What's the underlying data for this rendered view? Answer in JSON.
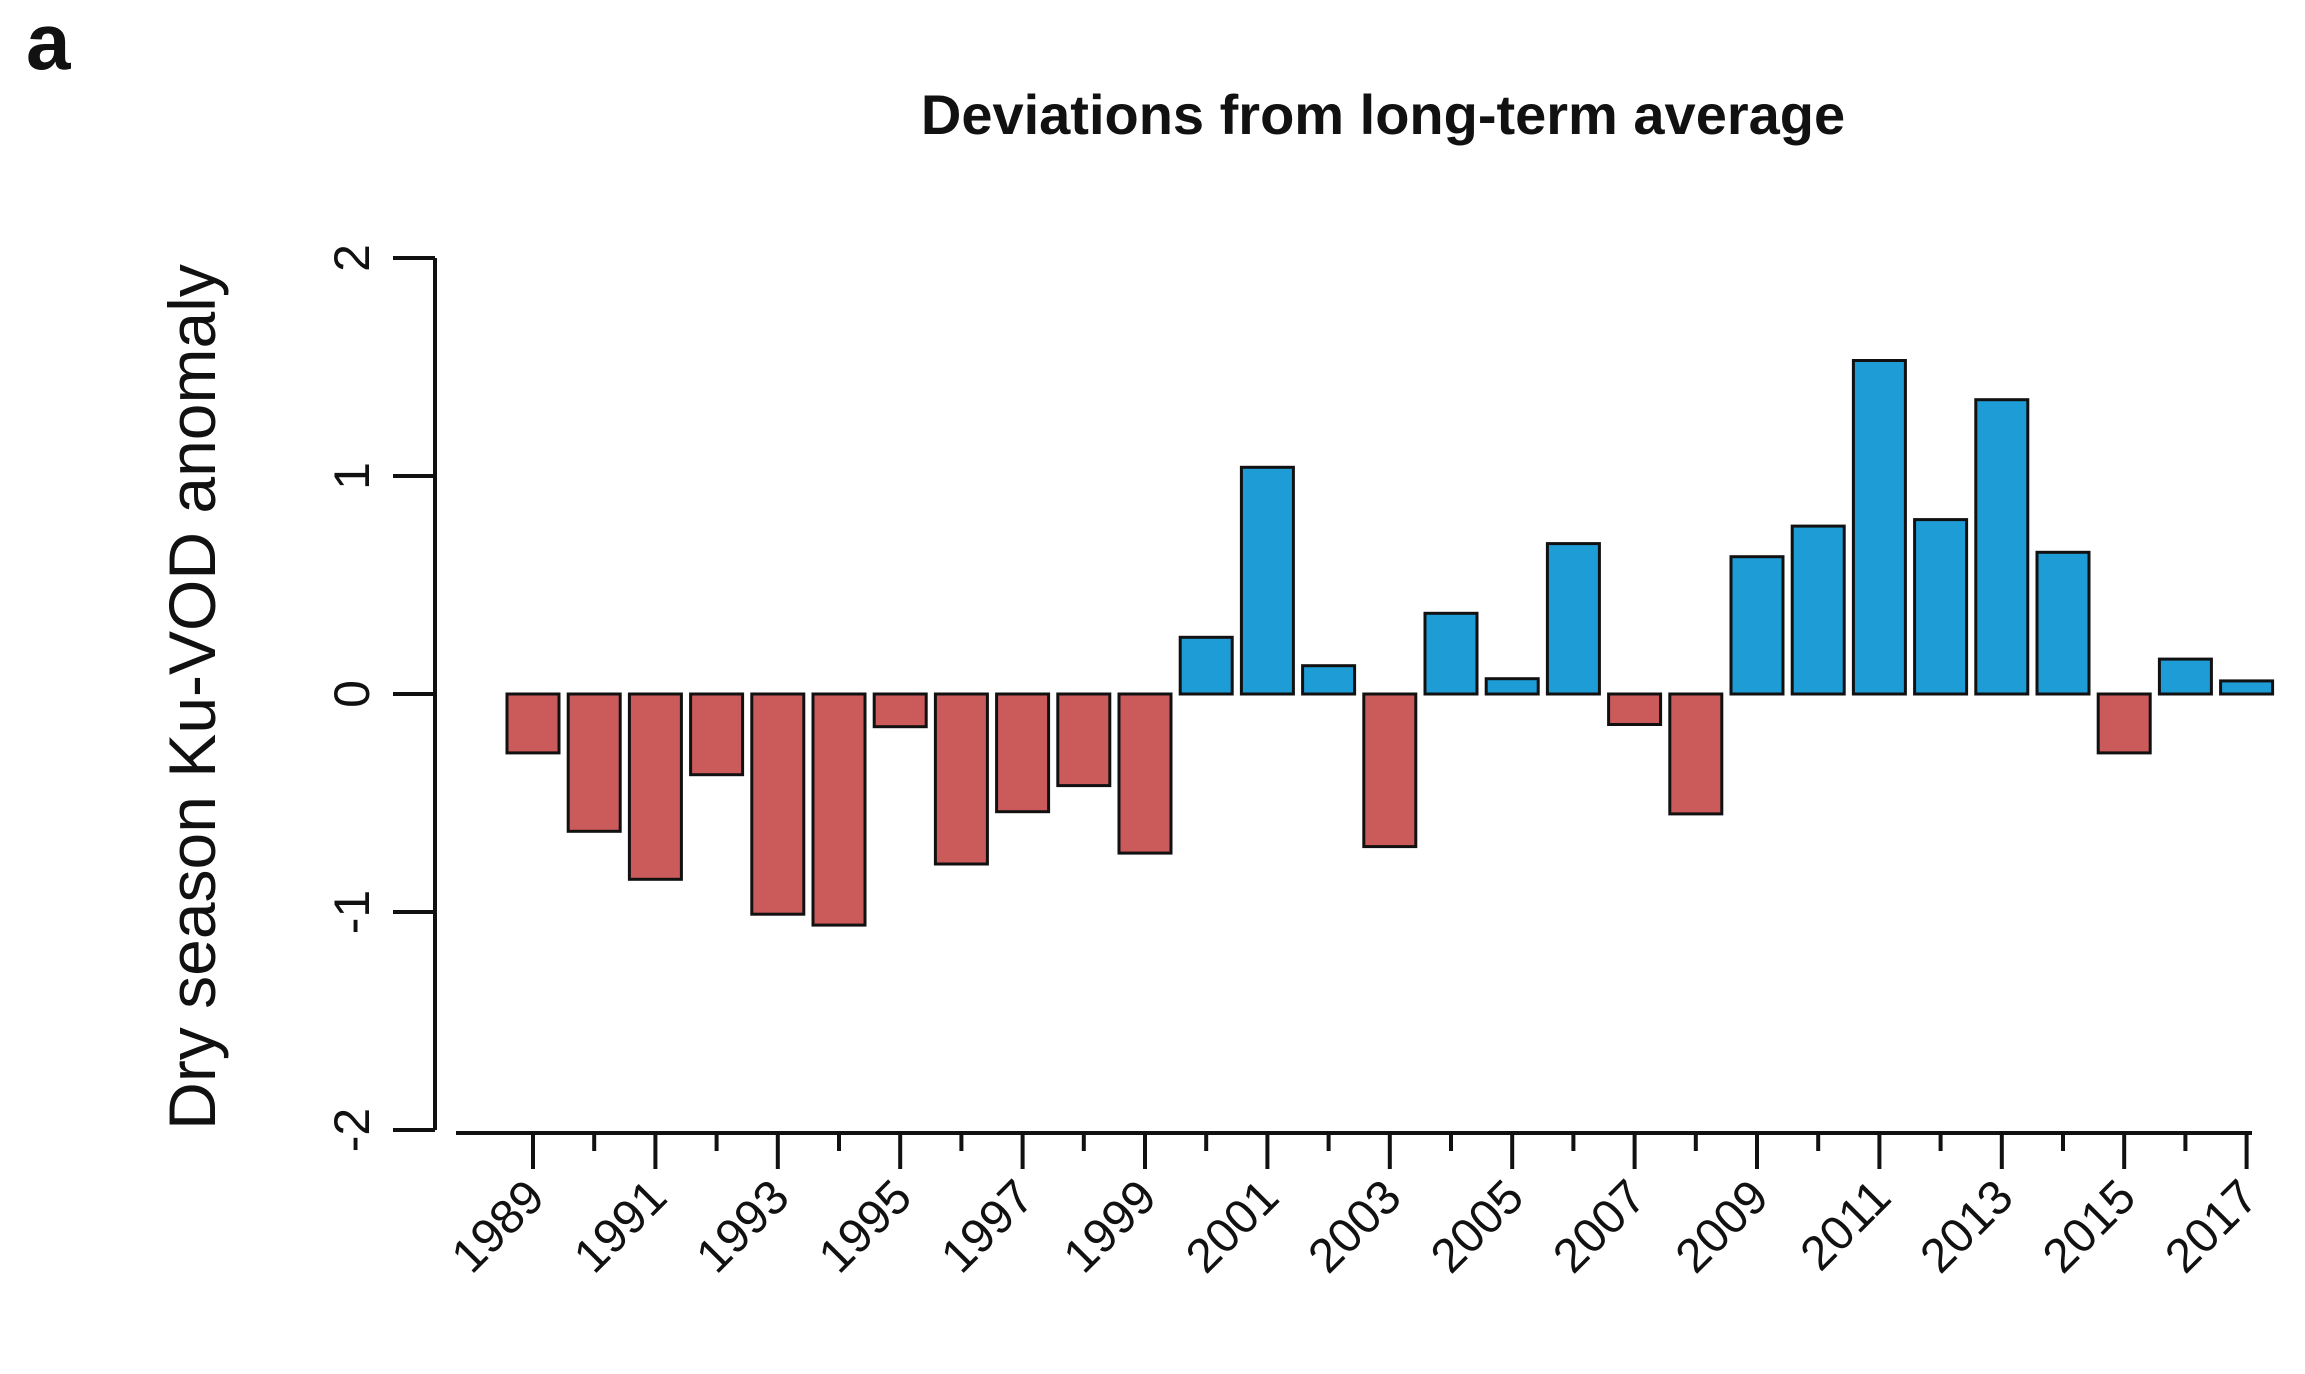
{
  "panel_label": "a",
  "chart_data": {
    "type": "bar",
    "title": "Deviations from long-term average",
    "xlabel": "",
    "ylabel": "Dry season Ku-VOD anomaly",
    "categories": [
      1989,
      1990,
      1991,
      1992,
      1993,
      1994,
      1995,
      1996,
      1997,
      1998,
      1999,
      2000,
      2001,
      2002,
      2003,
      2004,
      2005,
      2006,
      2007,
      2008,
      2009,
      2010,
      2011,
      2012,
      2013,
      2014,
      2015,
      2016,
      2017
    ],
    "values": [
      -0.27,
      -0.63,
      -0.85,
      -0.37,
      -1.01,
      -1.06,
      -0.15,
      -0.78,
      -0.54,
      -0.42,
      -0.73,
      0.26,
      1.04,
      0.13,
      -0.7,
      0.37,
      0.07,
      0.69,
      -0.14,
      -0.55,
      0.63,
      0.77,
      1.53,
      0.8,
      1.35,
      0.65,
      -0.27,
      0.16,
      0.06
    ],
    "x_tick_labels": [
      "1989",
      "1991",
      "1993",
      "1995",
      "1997",
      "1999",
      "2001",
      "2003",
      "2005",
      "2007",
      "2009",
      "2011",
      "2013",
      "2015",
      "2017"
    ],
    "y_ticks": [
      2,
      1,
      0,
      -1,
      -2
    ],
    "ylim": [
      -2,
      2
    ],
    "grid": false,
    "legend_position": "none",
    "x_label_rotation_deg": -45,
    "positive_color": "#1E9CD6",
    "negative_color": "#CB5A5B",
    "bar_outline_color": "#111111",
    "axis_color": "#111111",
    "color_rule": "positive values blue, negative values red"
  }
}
